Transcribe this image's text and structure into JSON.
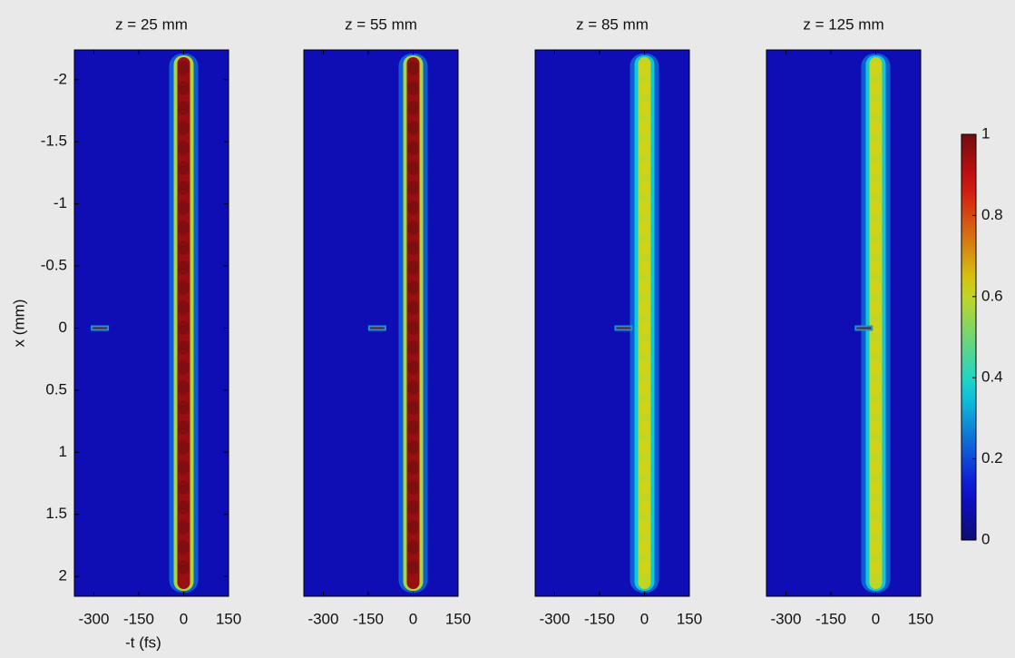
{
  "chart_data": [
    {
      "type": "heatmap",
      "title": "z = 25 mm",
      "xlabel": "-t (fs)",
      "ylabel": "x (mm)",
      "xlim": [
        -365,
        150
      ],
      "ylim": [
        -2.24,
        2.16
      ],
      "xticks": [
        -300,
        -150,
        0,
        150
      ],
      "yticks": [
        -2,
        -1.5,
        -1,
        -0.5,
        0,
        0.5,
        1,
        1.5,
        2
      ],
      "beam_peak": 0.95,
      "spike_t": -280
    },
    {
      "type": "heatmap",
      "title": "z = 55 mm",
      "xlim": [
        -365,
        150
      ],
      "ylim": [
        -2.24,
        2.16
      ],
      "xticks": [
        -300,
        -150,
        0,
        150
      ],
      "beam_peak": 0.95,
      "spike_t": -120
    },
    {
      "type": "heatmap",
      "title": "z = 85 mm",
      "xlim": [
        -365,
        150
      ],
      "ylim": [
        -2.24,
        2.16
      ],
      "xticks": [
        -300,
        -150,
        0,
        150
      ],
      "beam_peak": 0.6,
      "spike_t": -70
    },
    {
      "type": "heatmap",
      "title": "z = 125 mm",
      "xlim": [
        -365,
        150
      ],
      "ylim": [
        -2.24,
        2.16
      ],
      "xticks": [
        -300,
        -150,
        0,
        150
      ],
      "beam_peak": 0.6,
      "spike_t": -40,
      "colorbar": {
        "clim": [
          0,
          1
        ],
        "ticks": [
          0,
          0.2,
          0.4,
          0.6,
          0.8,
          1
        ]
      }
    }
  ]
}
